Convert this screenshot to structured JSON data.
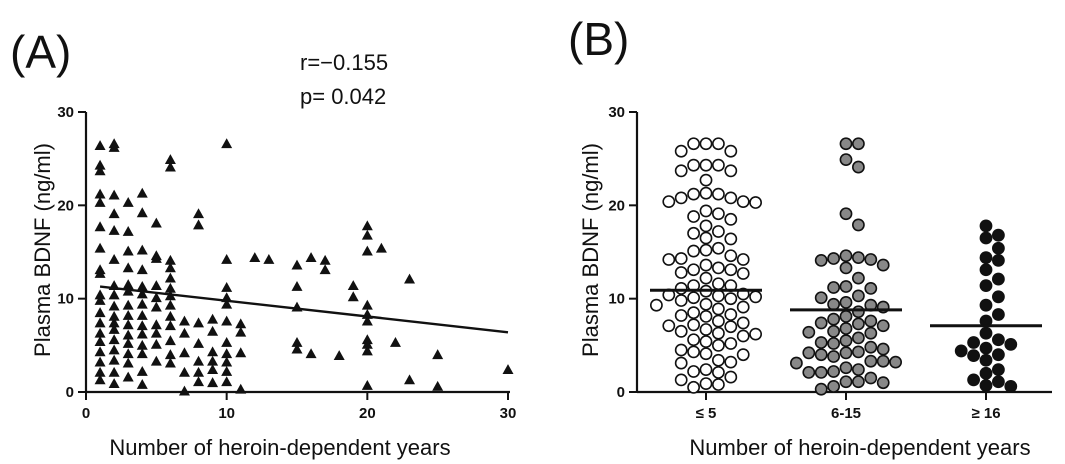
{
  "chart_data": [
    {
      "type": "scatter",
      "panel_label": "(A)",
      "stats": {
        "r": "r=−0.155",
        "p": "p= 0.042"
      },
      "xlabel": "Number of heroin-dependent years",
      "ylabel": "Plasma BDNF (ng/ml)",
      "xlim": [
        0,
        30
      ],
      "ylim": [
        0,
        30
      ],
      "xticks": [
        0,
        10,
        20,
        30
      ],
      "yticks": [
        0,
        10,
        20,
        30
      ],
      "marker": "triangle",
      "trendline": {
        "x": [
          1,
          30
        ],
        "y": [
          11.3,
          6.4
        ]
      },
      "points": [
        [
          1,
          26.4
        ],
        [
          1,
          24.3
        ],
        [
          1,
          23.7
        ],
        [
          1,
          21.2
        ],
        [
          1,
          20.3
        ],
        [
          1,
          17.7
        ],
        [
          1,
          15.4
        ],
        [
          1,
          13.1
        ],
        [
          1,
          12.7
        ],
        [
          1,
          10.4
        ],
        [
          1,
          9.8
        ],
        [
          1,
          8.5
        ],
        [
          1,
          7.4
        ],
        [
          1,
          6.3
        ],
        [
          1,
          5.4
        ],
        [
          1,
          4.3
        ],
        [
          1,
          3.2
        ],
        [
          1,
          2.1
        ],
        [
          1,
          1.3
        ],
        [
          2,
          26.6
        ],
        [
          2,
          26.2
        ],
        [
          2,
          21.1
        ],
        [
          2,
          19.1
        ],
        [
          2,
          17.3
        ],
        [
          2,
          14.2
        ],
        [
          2,
          11.4
        ],
        [
          2,
          10.4
        ],
        [
          2,
          9.2
        ],
        [
          2,
          8.1
        ],
        [
          2,
          7.4
        ],
        [
          2,
          6.7
        ],
        [
          2,
          5.6
        ],
        [
          2,
          4.5
        ],
        [
          2,
          3.4
        ],
        [
          2,
          2.1
        ],
        [
          2,
          0.9
        ],
        [
          3,
          20.3
        ],
        [
          3,
          17.2
        ],
        [
          3,
          15.1
        ],
        [
          3,
          13.3
        ],
        [
          3,
          11.5
        ],
        [
          3,
          10.8
        ],
        [
          3,
          9.3
        ],
        [
          3,
          8.2
        ],
        [
          3,
          7.2
        ],
        [
          3,
          6.1
        ],
        [
          3,
          5.2
        ],
        [
          3,
          4.1
        ],
        [
          3,
          3.1
        ],
        [
          3,
          1.6
        ],
        [
          4,
          21.3
        ],
        [
          4,
          19.2
        ],
        [
          4,
          15.2
        ],
        [
          4,
          13.1
        ],
        [
          4,
          11.3
        ],
        [
          4,
          10.5
        ],
        [
          4,
          9.4
        ],
        [
          4,
          8.2
        ],
        [
          4,
          7.1
        ],
        [
          4,
          6.2
        ],
        [
          4,
          5.0
        ],
        [
          4,
          4.1
        ],
        [
          4,
          2.2
        ],
        [
          4,
          0.8
        ],
        [
          5,
          18.1
        ],
        [
          5,
          14.6
        ],
        [
          5,
          14.3
        ],
        [
          5,
          11.4
        ],
        [
          5,
          10.1
        ],
        [
          5,
          9.1
        ],
        [
          5,
          7.2
        ],
        [
          5,
          6.3
        ],
        [
          5,
          5.1
        ],
        [
          5,
          3.3
        ],
        [
          6,
          24.9
        ],
        [
          6,
          24.1
        ],
        [
          6,
          14.1
        ],
        [
          6,
          13.3
        ],
        [
          6,
          12.2
        ],
        [
          6,
          11.1
        ],
        [
          6,
          10.3
        ],
        [
          6,
          9.3
        ],
        [
          6,
          8.1
        ],
        [
          6,
          7.1
        ],
        [
          6,
          5.5
        ],
        [
          6,
          4.0
        ],
        [
          6,
          3.1
        ],
        [
          7,
          0.1
        ],
        [
          7,
          7.6
        ],
        [
          7,
          6.3
        ],
        [
          7,
          4.2
        ],
        [
          7,
          2.1
        ],
        [
          8,
          19.1
        ],
        [
          8,
          17.9
        ],
        [
          8,
          7.4
        ],
        [
          8,
          5.2
        ],
        [
          8,
          3.3
        ],
        [
          8,
          2.1
        ],
        [
          8,
          1.1
        ],
        [
          9,
          7.8
        ],
        [
          9,
          6.5
        ],
        [
          9,
          4.3
        ],
        [
          9,
          3.3
        ],
        [
          9,
          2.4
        ],
        [
          9,
          1.0
        ],
        [
          10,
          26.6
        ],
        [
          10,
          14.2
        ],
        [
          10,
          11.2
        ],
        [
          10,
          10.1
        ],
        [
          10,
          9.4
        ],
        [
          10,
          7.6
        ],
        [
          10,
          5.3
        ],
        [
          10,
          4.1
        ],
        [
          10,
          3.2
        ],
        [
          10,
          2.2
        ],
        [
          10,
          1.1
        ],
        [
          11,
          7.3
        ],
        [
          11,
          6.4
        ],
        [
          11,
          4.2
        ],
        [
          11,
          0.3
        ],
        [
          12,
          14.4
        ],
        [
          13,
          14.2
        ],
        [
          15,
          13.6
        ],
        [
          15,
          11.3
        ],
        [
          15,
          9.1
        ],
        [
          15,
          5.3
        ],
        [
          15,
          4.6
        ],
        [
          16,
          14.4
        ],
        [
          16,
          4.1
        ],
        [
          17,
          14.1
        ],
        [
          17,
          13.1
        ],
        [
          18,
          3.9
        ],
        [
          19,
          11.4
        ],
        [
          19,
          10.2
        ],
        [
          20,
          17.8
        ],
        [
          20,
          16.8
        ],
        [
          20,
          15.1
        ],
        [
          20,
          9.3
        ],
        [
          20,
          8.3
        ],
        [
          20,
          7.6
        ],
        [
          20,
          5.6
        ],
        [
          20,
          5.1
        ],
        [
          20,
          4.4
        ],
        [
          20,
          0.7
        ],
        [
          21,
          15.4
        ],
        [
          22,
          5.3
        ],
        [
          23,
          12.1
        ],
        [
          23,
          1.3
        ],
        [
          25,
          4.0
        ],
        [
          25,
          0.6
        ],
        [
          30,
          2.4
        ]
      ]
    },
    {
      "type": "scatter",
      "panel_label": "(B)",
      "xlabel": "Number of heroin-dependent years",
      "ylabel": "Plasma BDNF (ng/ml)",
      "ylim": [
        0,
        30
      ],
      "yticks": [
        0,
        10,
        20,
        30
      ],
      "categories": [
        "≤ 5",
        "6-15",
        "≥ 16"
      ],
      "groups": [
        {
          "category": "≤ 5",
          "marker_fill": "#ffffff",
          "mean": 10.9,
          "values": [
            26.6,
            26.6,
            26.6,
            25.8,
            25.8,
            24.3,
            24.3,
            24.3,
            23.7,
            23.7,
            22.7,
            21.3,
            21.2,
            21.2,
            20.8,
            20.8,
            20.4,
            20.4,
            20.3,
            19.4,
            19.1,
            18.8,
            18.5,
            17.8,
            17.2,
            17.0,
            16.5,
            16.4,
            15.4,
            15.2,
            15.1,
            14.6,
            14.3,
            14.2,
            14.2,
            13.6,
            13.3,
            13.1,
            13.1,
            12.8,
            12.7,
            12.2,
            11.6,
            11.4,
            11.4,
            11.1,
            10.8,
            10.5,
            10.4,
            10.3,
            10.2,
            10.1,
            10.0,
            9.8,
            9.4,
            9.3,
            9.1,
            8.9,
            8.5,
            8.3,
            8.2,
            8.1,
            7.6,
            7.4,
            7.2,
            7.1,
            7.0,
            6.7,
            6.5,
            6.3,
            6.2,
            6.0,
            5.6,
            5.4,
            5.2,
            5.0,
            4.5,
            4.3,
            4.1,
            4.0,
            3.4,
            3.2,
            3.1,
            2.4,
            2.2,
            2.1,
            1.6,
            1.3,
            0.9,
            0.8,
            0.5
          ]
        },
        {
          "category": "6-15",
          "marker_fill": "#888888",
          "mean": 8.8,
          "values": [
            26.6,
            26.6,
            24.9,
            24.1,
            19.1,
            17.9,
            14.6,
            14.4,
            14.3,
            14.2,
            14.1,
            13.6,
            13.3,
            12.2,
            11.3,
            11.2,
            11.1,
            10.3,
            10.1,
            9.6,
            9.4,
            9.3,
            9.1,
            8.6,
            8.1,
            7.8,
            7.6,
            7.4,
            7.3,
            7.1,
            6.8,
            6.5,
            6.4,
            6.3,
            5.8,
            5.5,
            5.3,
            5.2,
            4.8,
            4.6,
            4.3,
            4.2,
            4.2,
            4.0,
            3.8,
            3.3,
            3.3,
            3.2,
            3.1,
            2.6,
            2.4,
            2.2,
            2.1,
            2.1,
            1.5,
            1.1,
            1.1,
            1.0,
            0.6,
            0.3
          ]
        },
        {
          "category": "≥ 16",
          "marker_fill": "#111111",
          "mean": 7.1,
          "values": [
            17.8,
            16.8,
            16.5,
            15.4,
            14.4,
            14.1,
            13.1,
            12.1,
            11.4,
            10.2,
            9.3,
            8.3,
            7.6,
            6.3,
            5.6,
            5.3,
            5.1,
            4.7,
            4.4,
            4.0,
            3.9,
            3.4,
            2.4,
            2.0,
            1.3,
            1.1,
            0.7,
            0.6
          ]
        }
      ]
    }
  ]
}
